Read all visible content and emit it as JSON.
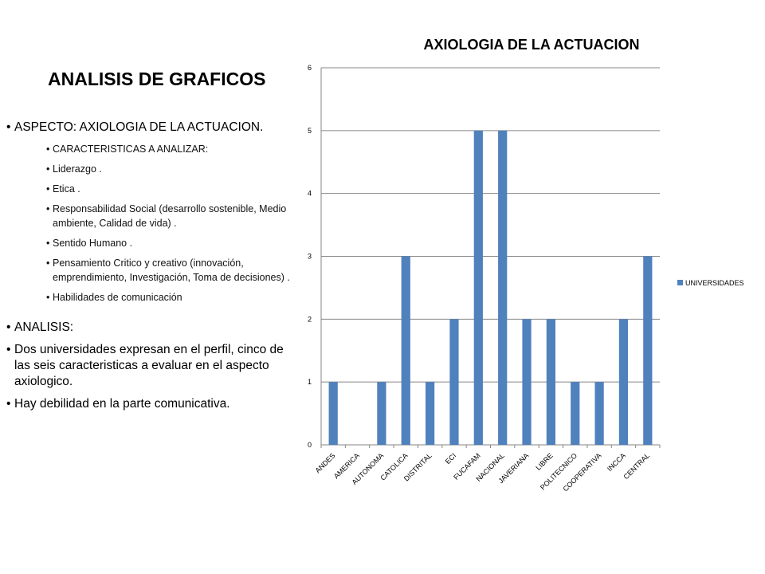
{
  "slide": {
    "title": "ANALISIS DE GRAFICOS"
  },
  "bullets": {
    "aspect": "ASPECTO: AXIOLOGIA DE LA ACTUACION.",
    "sub": [
      "CARACTERISTICAS A ANALIZAR:",
      "Liderazgo .",
      "Etica .",
      "Responsabilidad Social (desarrollo sostenible, Medio ambiente, Calidad de vida) .",
      "Sentido Humano .",
      "Pensamiento Critico y creativo  (innovación, emprendimiento, Investigación, Toma de decisiones) .",
      "Habilidades de comunicación"
    ],
    "analysis_heading": "ANALISIS:",
    "analysis": [
      "Dos universidades expresan en el perfil, cinco de las seis caracteristicas a evaluar  en el aspecto axiologico.",
      "Hay debilidad en la parte comunicativa."
    ]
  },
  "chart_data": {
    "type": "bar",
    "title": "AXIOLOGIA DE LA ACTUACION",
    "categories": [
      "ANDES",
      "AMERICA",
      "AUTONOMA",
      "CATOLICA",
      "DISTRITAL",
      "ECI",
      "FUCAFAM",
      "NACIONAL",
      "JAVERIANA",
      "LIBRE",
      "POLITECNICO",
      "COOPERATIVA",
      "INCCA",
      "CENTRAL"
    ],
    "series": [
      {
        "name": "UNIVERSIDADES",
        "values": [
          1,
          0,
          1,
          3,
          1,
          2,
          5,
          5,
          2,
          2,
          1,
          1,
          2,
          3
        ]
      }
    ],
    "ylim": [
      0,
      6
    ],
    "yticks": [
      0,
      1,
      2,
      3,
      4,
      5,
      6
    ],
    "grid": true,
    "legend_position": "right",
    "colors": {
      "bar": "#4f81bd",
      "grid": "#868686",
      "axis": "#868686"
    }
  }
}
